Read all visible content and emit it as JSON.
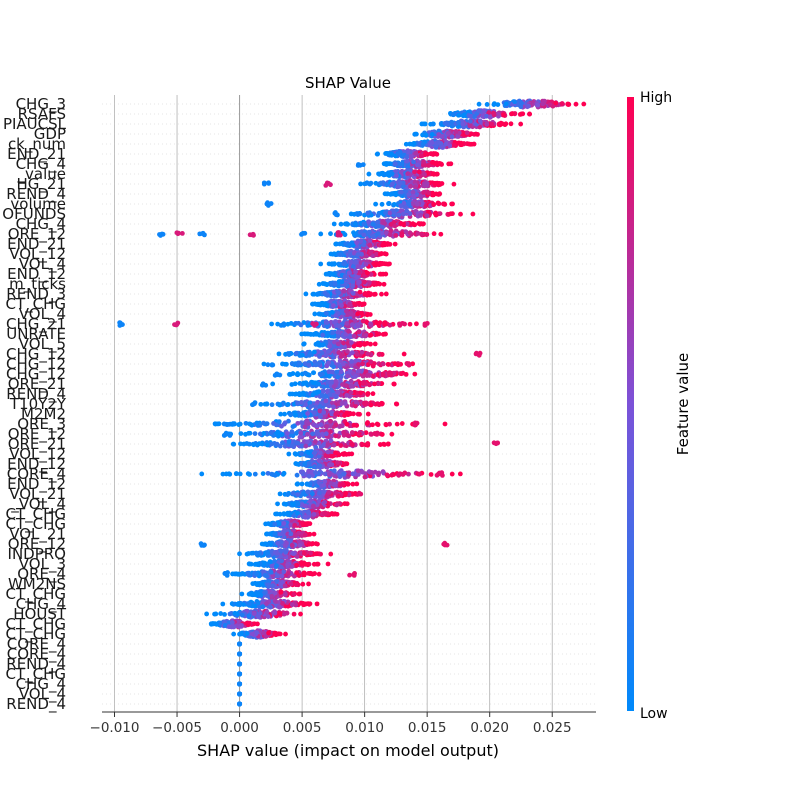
{
  "chart_data": {
    "type": "scatter",
    "subtype": "shap-beeswarm",
    "title": "SHAP Value",
    "xlabel": "SHAP value (impact on model output)",
    "xlim": [
      -0.011,
      0.0285
    ],
    "x_ticks": [
      -0.01,
      -0.005,
      0.0,
      0.005,
      0.01,
      0.015,
      0.02,
      0.025
    ],
    "x_tick_labels": [
      "−0.010",
      "−0.005",
      "0.000",
      "0.005",
      "0.010",
      "0.015",
      "0.020",
      "0.025"
    ],
    "grid": "vertical",
    "features": [
      {
        "name": "CHG_3",
        "center": 0.0233,
        "spread": 0.0018,
        "outliers": []
      },
      {
        "name": "RSAFS",
        "center": 0.0195,
        "spread": 0.0015,
        "outliers": []
      },
      {
        "name": "PIAUCSL",
        "center": 0.0185,
        "spread": 0.0015,
        "outliers": []
      },
      {
        "name": "GDP",
        "center": 0.0165,
        "spread": 0.0012,
        "outliers": []
      },
      {
        "name": "ck_num",
        "center": 0.016,
        "spread": 0.0012,
        "outliers": []
      },
      {
        "name": "END_21",
        "center": 0.0135,
        "spread": 0.001,
        "outliers": []
      },
      {
        "name": "CHG_4",
        "center": 0.014,
        "spread": 0.0012,
        "outliers": [
          0.0097
        ]
      },
      {
        "name": "_value",
        "center": 0.0135,
        "spread": 0.0012,
        "outliers": []
      },
      {
        "name": "HG_21",
        "center": 0.0135,
        "spread": 0.0015,
        "outliers": [
          0.0022,
          0.0071,
          0.0103
        ]
      },
      {
        "name": "REND_4",
        "center": 0.014,
        "spread": 0.001,
        "outliers": []
      },
      {
        "name": "volume",
        "center": 0.014,
        "spread": 0.0012,
        "outliers": [
          0.0024
        ]
      },
      {
        "name": "OFUNDS",
        "center": 0.013,
        "spread": 0.002,
        "outliers": [
          0.0078
        ]
      },
      {
        "name": "CHG_4",
        "center": 0.0115,
        "spread": 0.0015,
        "outliers": []
      },
      {
        "name": "ORE_12",
        "center": 0.0115,
        "spread": 0.002,
        "outliers": [
          -0.0062,
          -0.0048,
          -0.003,
          0.001,
          0.005,
          0.008
        ]
      },
      {
        "name": "END_21",
        "center": 0.01,
        "spread": 0.001,
        "outliers": []
      },
      {
        "name": "VOL_12",
        "center": 0.0095,
        "spread": 0.001,
        "outliers": []
      },
      {
        "name": "VOL_4",
        "center": 0.0095,
        "spread": 0.001,
        "outliers": []
      },
      {
        "name": "END_12",
        "center": 0.009,
        "spread": 0.001,
        "outliers": []
      },
      {
        "name": "m_ticks",
        "center": 0.009,
        "spread": 0.0012,
        "outliers": []
      },
      {
        "name": "REND_3",
        "center": 0.0085,
        "spread": 0.0012,
        "outliers": []
      },
      {
        "name": "CT_CHG",
        "center": 0.008,
        "spread": 0.001,
        "outliers": []
      },
      {
        "name": "VOL_4",
        "center": 0.0085,
        "spread": 0.001,
        "outliers": []
      },
      {
        "name": "CHG_21",
        "center": 0.0085,
        "spread": 0.0025,
        "outliers": [
          -0.0095,
          -0.005,
          0.0035,
          0.006,
          0.013,
          0.015
        ]
      },
      {
        "name": "UNRATE",
        "center": 0.0085,
        "spread": 0.0015,
        "outliers": []
      },
      {
        "name": "VOL_5",
        "center": 0.008,
        "spread": 0.0012,
        "outliers": []
      },
      {
        "name": "CHG_12",
        "center": 0.0075,
        "spread": 0.002,
        "outliers": [
          0.019
        ]
      },
      {
        "name": "CHG_12",
        "center": 0.0085,
        "spread": 0.0025,
        "outliers": [
          0.0025,
          0.0135
        ]
      },
      {
        "name": "CHG_12",
        "center": 0.009,
        "spread": 0.0025,
        "outliers": [
          0.003,
          0.012
        ]
      },
      {
        "name": "ORE_21",
        "center": 0.008,
        "spread": 0.002,
        "outliers": [
          0.002,
          0.01
        ]
      },
      {
        "name": "REND_4",
        "center": 0.0075,
        "spread": 0.0015,
        "outliers": []
      },
      {
        "name": "T10Y2Y",
        "center": 0.007,
        "spread": 0.0025,
        "outliers": [
          0.001,
          0.01
        ]
      },
      {
        "name": "M2M2",
        "center": 0.0065,
        "spread": 0.0015,
        "outliers": []
      },
      {
        "name": "ORE_3",
        "center": 0.006,
        "spread": 0.0035,
        "outliers": [
          -0.001,
          0.014
        ]
      },
      {
        "name": "ORE_12",
        "center": 0.006,
        "spread": 0.003,
        "outliers": [
          -0.001,
          0.011
        ]
      },
      {
        "name": "ORE_21",
        "center": 0.006,
        "spread": 0.003,
        "outliers": [
          0.0205
        ]
      },
      {
        "name": "VOL_12",
        "center": 0.0065,
        "spread": 0.001,
        "outliers": []
      },
      {
        "name": "END_12",
        "center": 0.0065,
        "spread": 0.001,
        "outliers": []
      },
      {
        "name": "CORE_4",
        "center": 0.008,
        "spread": 0.004,
        "outliers": [
          0.013,
          0.016
        ]
      },
      {
        "name": "END_12",
        "center": 0.007,
        "spread": 0.001,
        "outliers": []
      },
      {
        "name": "VOL_21",
        "center": 0.0065,
        "spread": 0.0015,
        "outliers": [
          0.0095
        ]
      },
      {
        "name": "_VOL_4",
        "center": 0.006,
        "spread": 0.0012,
        "outliers": []
      },
      {
        "name": "CT_CHG",
        "center": 0.0055,
        "spread": 0.001,
        "outliers": []
      },
      {
        "name": "CT_CHG",
        "center": 0.004,
        "spread": 0.0008,
        "outliers": []
      },
      {
        "name": "VOL_21",
        "center": 0.004,
        "spread": 0.0008,
        "outliers": []
      },
      {
        "name": "ORE_12",
        "center": 0.004,
        "spread": 0.001,
        "outliers": [
          -0.003,
          0.0165
        ]
      },
      {
        "name": "INDPRO",
        "center": 0.0035,
        "spread": 0.0015,
        "outliers": []
      },
      {
        "name": "VOL_3",
        "center": 0.0035,
        "spread": 0.0012,
        "outliers": []
      },
      {
        "name": "ORE_4",
        "center": 0.003,
        "spread": 0.0015,
        "outliers": [
          -0.001,
          0.009
        ]
      },
      {
        "name": "WM2NS",
        "center": 0.003,
        "spread": 0.001,
        "outliers": []
      },
      {
        "name": "CT_CHG",
        "center": 0.0025,
        "spread": 0.001,
        "outliers": []
      },
      {
        "name": "CHG_4",
        "center": 0.0025,
        "spread": 0.0015,
        "outliers": []
      },
      {
        "name": "HOUST",
        "center": 0.0015,
        "spread": 0.0015,
        "outliers": []
      },
      {
        "name": "CT_CHG",
        "center": -0.0005,
        "spread": 0.0008,
        "outliers": []
      },
      {
        "name": "CT_CHG",
        "center": 0.0015,
        "spread": 0.0008,
        "outliers": []
      },
      {
        "name": "CORE_4",
        "center": 0.0,
        "spread": 0.0,
        "outliers": []
      },
      {
        "name": "CORE_4",
        "center": 0.0,
        "spread": 0.0,
        "outliers": []
      },
      {
        "name": "REND_4",
        "center": 0.0,
        "spread": 0.0,
        "outliers": []
      },
      {
        "name": "CT_CHG",
        "center": 0.0,
        "spread": 0.0,
        "outliers": []
      },
      {
        "name": "CHG_4",
        "center": 0.0,
        "spread": 0.0,
        "outliers": []
      },
      {
        "name": "VOL_4",
        "center": 0.0,
        "spread": 0.0,
        "outliers": []
      },
      {
        "name": "REND_4",
        "center": 0.0,
        "spread": 0.0,
        "outliers": []
      }
    ],
    "colorbar": {
      "label": "Feature value",
      "high_label": "High",
      "low_label": "Low",
      "low_color": "#008afb",
      "mid_color": "#7c52d8",
      "high_color": "#ff0052"
    }
  }
}
